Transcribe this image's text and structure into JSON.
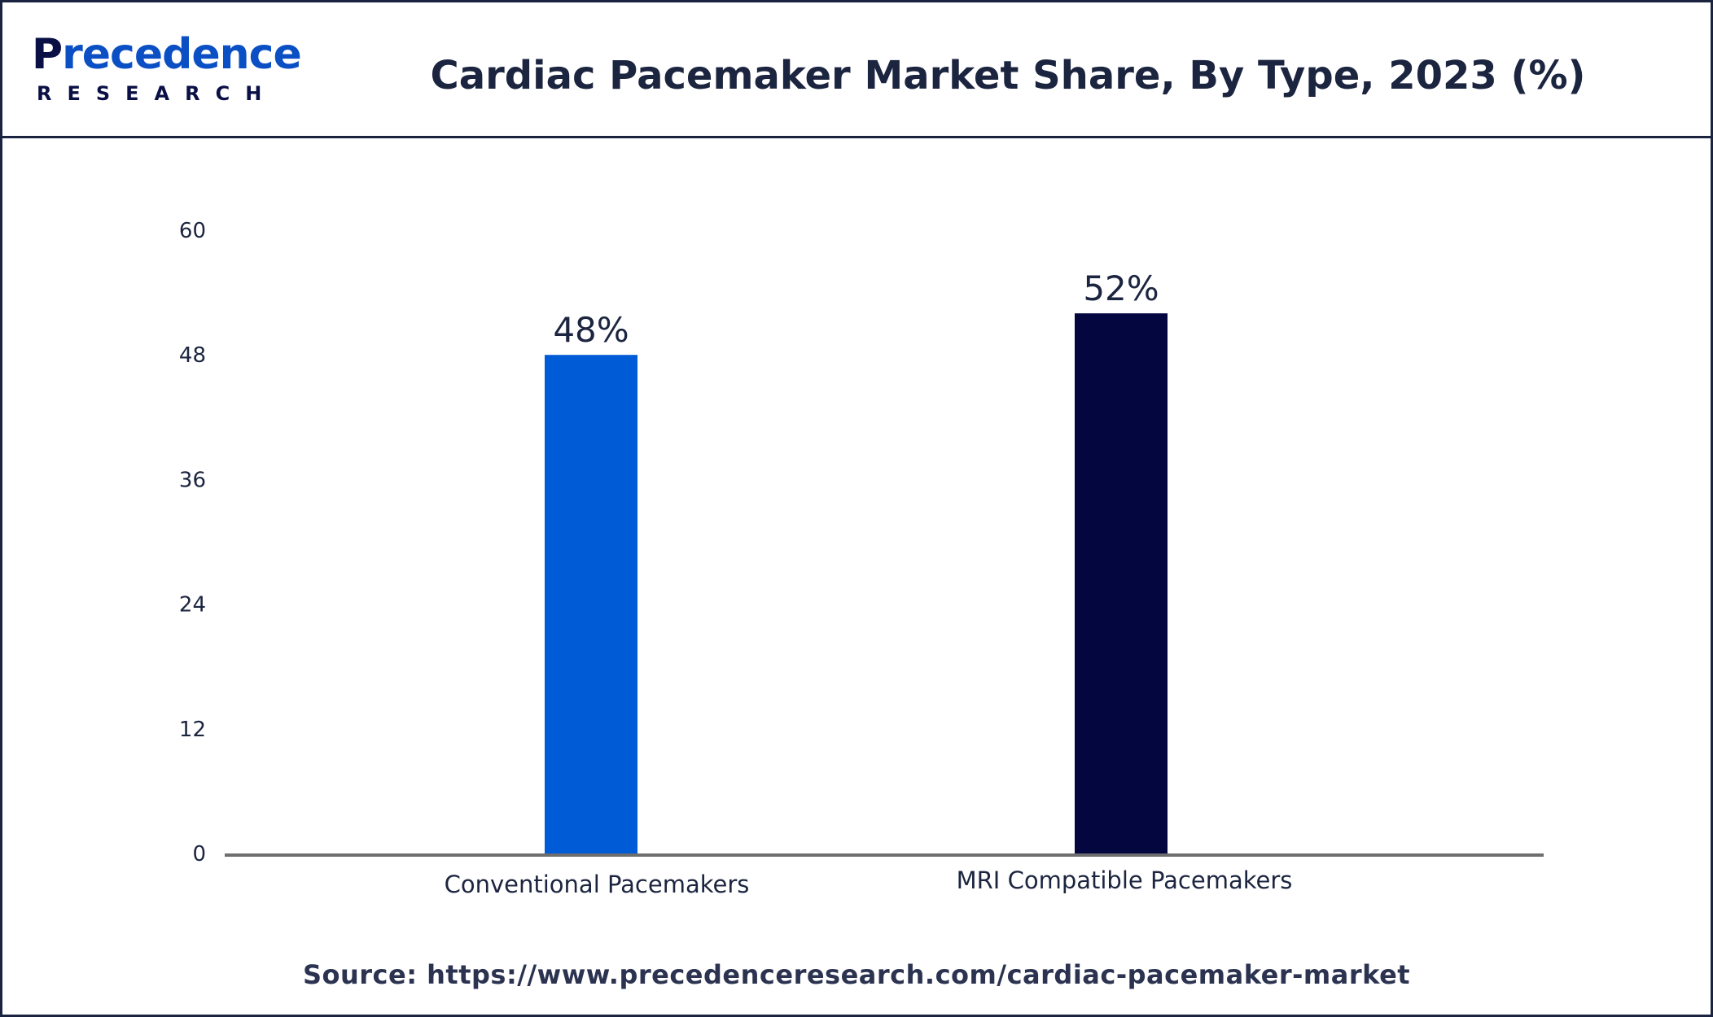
{
  "brand": {
    "logo_first": "P",
    "logo_rest": "recedence",
    "logo_sub": "RESEARCH",
    "colors": {
      "navy": "#0a1045",
      "blue": "#0a4fc4"
    }
  },
  "header": {
    "title": "Cardiac Pacemaker Market Share, By Type, 2023 (%)"
  },
  "footer": {
    "source": "Source: https://www.precedenceresearch.com/cardiac-pacemaker-market"
  },
  "chart_data": {
    "type": "bar",
    "title": "Cardiac Pacemaker Market Share, By Type, 2023 (%)",
    "xlabel": "",
    "ylabel": "",
    "categories": [
      "Conventional Pacemakers",
      "MRI Compatible Pacemakers"
    ],
    "values": [
      48,
      52
    ],
    "data_labels": [
      "48%",
      "52%"
    ],
    "bar_colors": [
      "#005bd6",
      "#03063f"
    ],
    "ylim": [
      0,
      60
    ],
    "yticks": [
      0,
      12,
      24,
      36,
      48,
      60
    ],
    "grid": false,
    "legend": "none"
  }
}
